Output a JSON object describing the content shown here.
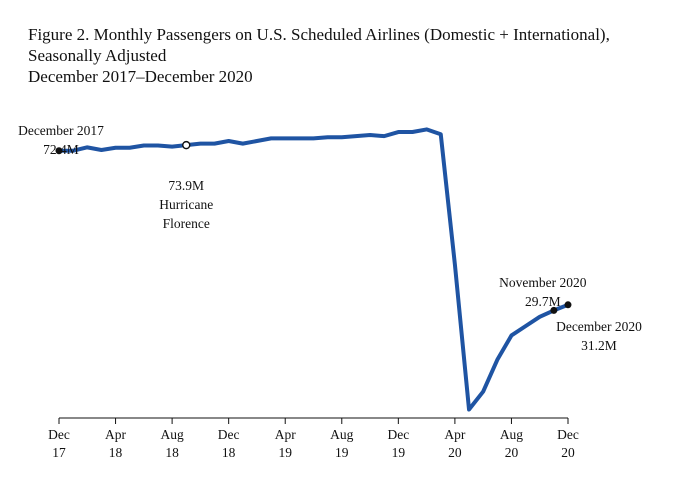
{
  "title_lines": [
    "Figure 2. Monthly Passengers on U.S. Scheduled Airlines (Domestic + International),",
    "Seasonally Adjusted",
    "December 2017–December 2020"
  ],
  "chart_data": {
    "type": "line",
    "title": "Figure 2. Monthly Passengers on U.S. Scheduled Airlines (Domestic + International), Seasonally Adjusted December 2017–December 2020",
    "xlabel": "",
    "ylabel": "",
    "x_ticks": [
      {
        "month": "Dec",
        "year": "17",
        "index": 0
      },
      {
        "month": "Apr",
        "year": "18",
        "index": 4
      },
      {
        "month": "Aug",
        "year": "18",
        "index": 8
      },
      {
        "month": "Dec",
        "year": "18",
        "index": 12
      },
      {
        "month": "Apr",
        "year": "19",
        "index": 16
      },
      {
        "month": "Aug",
        "year": "19",
        "index": 20
      },
      {
        "month": "Dec",
        "year": "19",
        "index": 24
      },
      {
        "month": "Apr",
        "year": "20",
        "index": 28
      },
      {
        "month": "Aug",
        "year": "20",
        "index": 32
      },
      {
        "month": "Dec",
        "year": "20",
        "index": 36
      }
    ],
    "ylim": [
      2,
      75
    ],
    "grid": false,
    "series": [
      {
        "color": "#1f54a3",
        "x": [
          "2017-12",
          "2018-01",
          "2018-02",
          "2018-03",
          "2018-04",
          "2018-05",
          "2018-06",
          "2018-07",
          "2018-08",
          "2018-09",
          "2018-10",
          "2018-11",
          "2018-12",
          "2019-01",
          "2019-02",
          "2019-03",
          "2019-04",
          "2019-05",
          "2019-06",
          "2019-07",
          "2019-08",
          "2019-09",
          "2019-10",
          "2019-11",
          "2019-12",
          "2020-01",
          "2020-02",
          "2020-03",
          "2020-04",
          "2020-05",
          "2020-06",
          "2020-07",
          "2020-08",
          "2020-09",
          "2020-10",
          "2020-11",
          "2020-12"
        ],
        "values": [
          72.4,
          72.4,
          73.3,
          72.6,
          73.2,
          73.2,
          73.8,
          73.8,
          73.5,
          73.9,
          74.3,
          74.3,
          75.0,
          74.3,
          75.0,
          75.7,
          75.7,
          75.7,
          75.7,
          76.0,
          76.0,
          76.3,
          76.6,
          76.3,
          77.4,
          77.4,
          78.1,
          76.8,
          42.0,
          3.2,
          8.0,
          16.5,
          23.0,
          25.5,
          28.0,
          29.7,
          31.2
        ]
      }
    ],
    "annotations": [
      {
        "index": 0,
        "value": 72.4,
        "lines": [
          "December 2017",
          "72.4M"
        ],
        "marker": "filled"
      },
      {
        "index": 9,
        "value": 73.9,
        "lines": [
          "73.9M",
          "Hurricane",
          "Florence"
        ],
        "marker": "open"
      },
      {
        "index": 35,
        "value": 29.7,
        "lines": [
          "November 2020",
          "29.7M"
        ],
        "marker": "filled"
      },
      {
        "index": 36,
        "value": 31.2,
        "lines": [
          "December 2020",
          "31.2M"
        ],
        "marker": "filled"
      }
    ]
  }
}
